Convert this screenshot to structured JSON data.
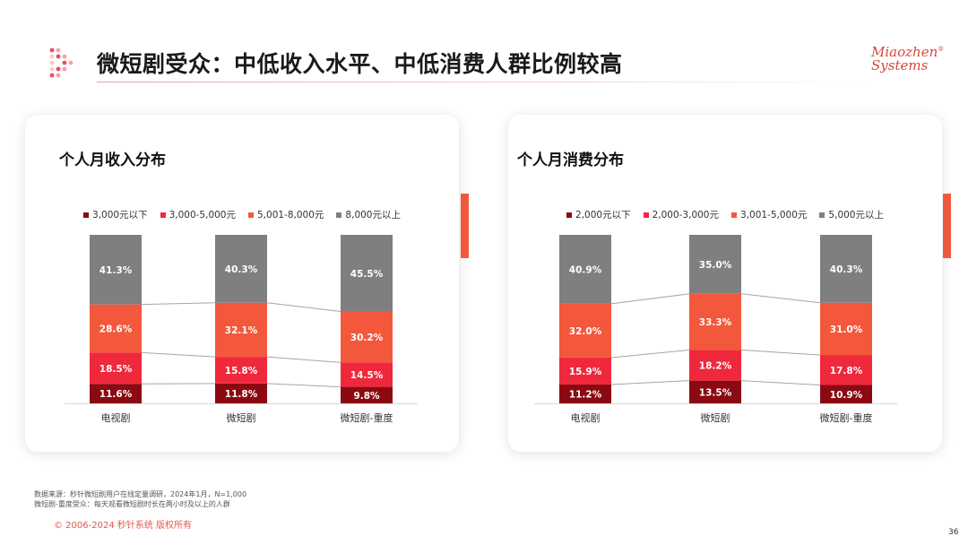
{
  "header": {
    "title": "微短剧受众：中低收入水平、中低消费人群比例较高",
    "brand_line1": "Miaozhen",
    "brand_line2": "Systems",
    "brand_mark": "®"
  },
  "colors": {
    "c1": "#8b0a12",
    "c2": "#f0283c",
    "c3": "#f4583c",
    "c4": "#7f7f7f",
    "accent": "#f05a3c"
  },
  "chart_data": [
    {
      "type": "bar",
      "stacked": true,
      "percent": true,
      "title": "个人月收入分布",
      "categories": [
        "电视剧",
        "微短剧",
        "微短剧-重度"
      ],
      "series": [
        {
          "name": "3,000元以下",
          "values": [
            11.6,
            11.8,
            9.8
          ]
        },
        {
          "name": "3,000-5,000元",
          "values": [
            18.5,
            15.8,
            14.5
          ]
        },
        {
          "name": "5,001-8,000元",
          "values": [
            28.6,
            32.1,
            30.2
          ]
        },
        {
          "name": "8,000元以上",
          "values": [
            41.3,
            40.3,
            45.5
          ]
        }
      ],
      "value_labels": [
        [
          "11.6%",
          "11.8%",
          "9.8%"
        ],
        [
          "18.5%",
          "15.8%",
          "14.5%"
        ],
        [
          "28.6%",
          "32.1%",
          "30.2%"
        ],
        [
          "41.3%",
          "40.3%",
          "45.5%"
        ]
      ],
      "ylim": [
        0,
        100
      ],
      "legend_position": "top"
    },
    {
      "type": "bar",
      "stacked": true,
      "percent": true,
      "title": "个人月消费分布",
      "categories": [
        "电视剧",
        "微短剧",
        "微短剧-重度"
      ],
      "series": [
        {
          "name": "2,000元以下",
          "values": [
            11.2,
            13.5,
            10.9
          ]
        },
        {
          "name": "2,000-3,000元",
          "values": [
            15.9,
            18.2,
            17.8
          ]
        },
        {
          "name": "3,001-5,000元",
          "values": [
            32.0,
            33.3,
            31.0
          ]
        },
        {
          "name": "5,000元以上",
          "values": [
            40.9,
            35.0,
            40.3
          ]
        }
      ],
      "value_labels": [
        [
          "11.2%",
          "13.5%",
          "10.9%"
        ],
        [
          "15.9%",
          "18.2%",
          "17.8%"
        ],
        [
          "32.0%",
          "33.3%",
          "31.0%"
        ],
        [
          "40.9%",
          "35.0%",
          "40.3%"
        ]
      ],
      "ylim": [
        0,
        100
      ],
      "legend_position": "top"
    }
  ],
  "footer": {
    "note1": "数据来源：秒针微短剧用户在线定量调研，2024年1月，N=1,000",
    "note2": "微短剧-重度受众：每天观看微短剧时长在两小时及以上的人群",
    "copyright": "© 2006-2024 秒针系统 版权所有",
    "page_number": "36"
  }
}
